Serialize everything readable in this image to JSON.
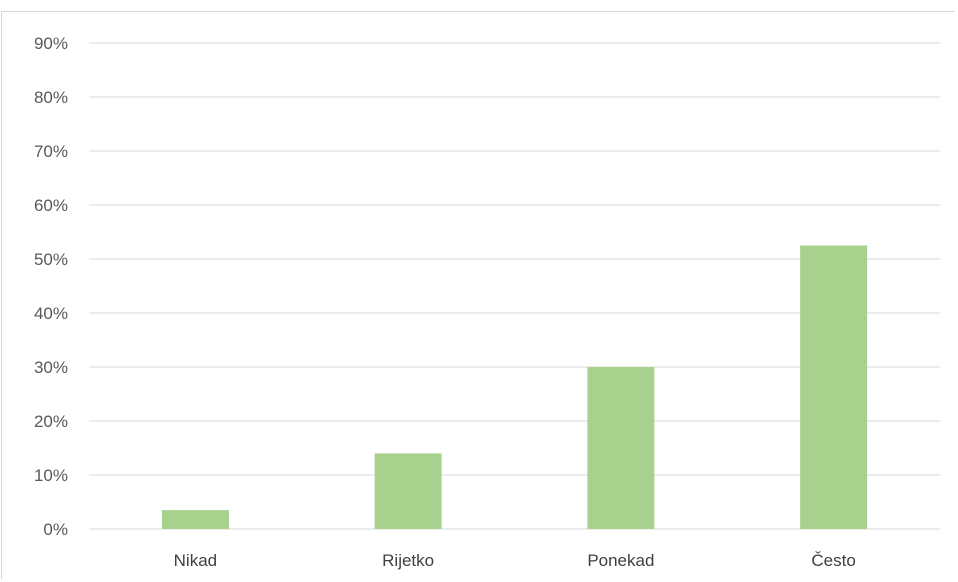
{
  "chart_data": {
    "type": "bar",
    "title": "",
    "xlabel": "",
    "ylabel": "",
    "categories": [
      "Nikad",
      "Rijetko",
      "Ponekad",
      "Često"
    ],
    "values": [
      0.035,
      0.14,
      0.3,
      0.525
    ],
    "ylim": [
      0,
      0.9
    ],
    "yticks": [
      0,
      0.1,
      0.2,
      0.3,
      0.4,
      0.5,
      0.6,
      0.7,
      0.8,
      0.9
    ],
    "ytick_labels": [
      "0%",
      "10%",
      "20%",
      "30%",
      "40%",
      "50%",
      "60%",
      "70%",
      "80%",
      "90%"
    ],
    "grid": true,
    "bar_color": "#a9d18e",
    "grid_color": "#d9d9d9",
    "legend": "none"
  }
}
